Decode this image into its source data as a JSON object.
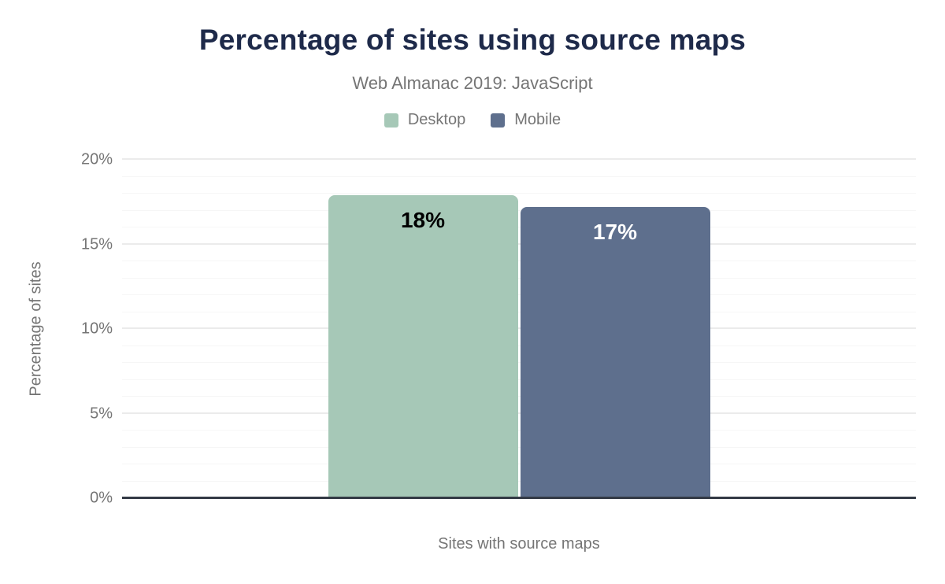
{
  "chart_data": {
    "type": "bar",
    "title": "Percentage of sites using source maps",
    "subtitle": "Web Almanac 2019: JavaScript",
    "categories": [
      "Sites with source maps"
    ],
    "series": [
      {
        "name": "Desktop",
        "value": 17.9,
        "data_label": "18%",
        "color": "#a6c8b7",
        "label_color": "#000000"
      },
      {
        "name": "Mobile",
        "value": 17.2,
        "data_label": "17%",
        "color": "#5e6f8d",
        "label_color": "#ffffff"
      }
    ],
    "xlabel": "Sites with source maps",
    "ylabel": "Percentage of sites",
    "ylim": [
      0,
      20
    ],
    "yticks": [
      {
        "value": 0,
        "label": "0%"
      },
      {
        "value": 5,
        "label": "5%"
      },
      {
        "value": 10,
        "label": "10%"
      },
      {
        "value": 15,
        "label": "15%"
      },
      {
        "value": 20,
        "label": "20%"
      }
    ],
    "grid": {
      "on": true,
      "minor_step": 1,
      "major_step": 5
    },
    "legend_position": "top"
  },
  "colors": {
    "background": "#ffffff",
    "title": "#1e2a4a",
    "muted_text": "#757575",
    "baseline": "#333a45",
    "grid_minor": "#f6f6f6",
    "grid_major": "#ebebeb"
  }
}
